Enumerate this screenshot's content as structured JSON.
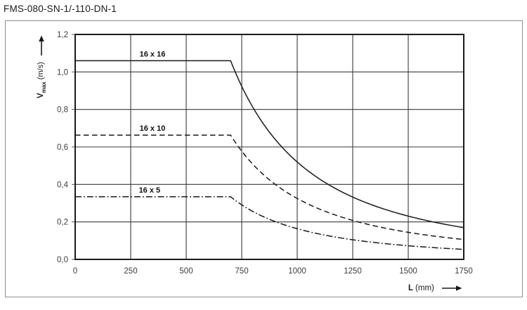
{
  "title": "FMS-080-SN-1/-110-DN-1",
  "colors": {
    "background": "#ffffff",
    "frame_border": "#8c8c8c",
    "axis": "#1a1a1a",
    "grid": "#3a3a3a",
    "line": "#1a1a1a",
    "tick_text": "#3d3d3d",
    "label_text": "#111111"
  },
  "y_axis": {
    "label_main": "V",
    "label_sub": "max",
    "label_unit": "(m/s)"
  },
  "x_axis": {
    "label_main": "L",
    "label_unit": "(mm)"
  },
  "chart_data": {
    "type": "line",
    "title": "FMS-080-SN-1/-110-DN-1",
    "xlabel": "L (mm)",
    "ylabel": "Vmax (m/s)",
    "xlim": [
      0,
      1750
    ],
    "ylim": [
      0,
      1.2
    ],
    "x_ticks": [
      0,
      250,
      500,
      750,
      1000,
      1250,
      1500,
      1750
    ],
    "x_tick_labels": [
      "0",
      "250",
      "500",
      "750",
      "1000",
      "1250",
      "1500",
      "1750"
    ],
    "y_ticks": [
      0,
      0.2,
      0.4,
      0.6,
      0.8,
      1.0,
      1.2
    ],
    "y_tick_labels": [
      "0,0",
      "0,2",
      "0,4",
      "0,6",
      "0,8",
      "1,0",
      "1,2"
    ],
    "grid": true,
    "legend_position": "inline-labels",
    "series": [
      {
        "name": "16 x 16",
        "line_style": "solid",
        "flat_value": 1.06,
        "knee_L": 700,
        "decay_exponent": 2,
        "label_L": 348,
        "points": [
          [
            0,
            1.06
          ],
          [
            700,
            1.06
          ],
          [
            750,
            0.92
          ],
          [
            800,
            0.81
          ],
          [
            900,
            0.64
          ],
          [
            1000,
            0.52
          ],
          [
            1100,
            0.43
          ],
          [
            1250,
            0.33
          ],
          [
            1500,
            0.23
          ],
          [
            1750,
            0.17
          ]
        ]
      },
      {
        "name": "16 x 10",
        "line_style": "dashed",
        "flat_value": 0.663,
        "knee_L": 700,
        "decay_exponent": 2,
        "label_L": 348,
        "points": [
          [
            0,
            0.663
          ],
          [
            700,
            0.663
          ],
          [
            750,
            0.58
          ],
          [
            800,
            0.51
          ],
          [
            900,
            0.4
          ],
          [
            1000,
            0.33
          ],
          [
            1100,
            0.27
          ],
          [
            1250,
            0.21
          ],
          [
            1500,
            0.14
          ],
          [
            1750,
            0.11
          ]
        ]
      },
      {
        "name": "16 x 5",
        "line_style": "dashdot",
        "flat_value": 0.334,
        "knee_L": 700,
        "decay_exponent": 2,
        "label_L": 335,
        "points": [
          [
            0,
            0.334
          ],
          [
            700,
            0.334
          ],
          [
            750,
            0.29
          ],
          [
            800,
            0.26
          ],
          [
            900,
            0.2
          ],
          [
            1000,
            0.16
          ],
          [
            1100,
            0.13
          ],
          [
            1250,
            0.1
          ],
          [
            1500,
            0.07
          ],
          [
            1750,
            0.05
          ]
        ]
      }
    ]
  }
}
